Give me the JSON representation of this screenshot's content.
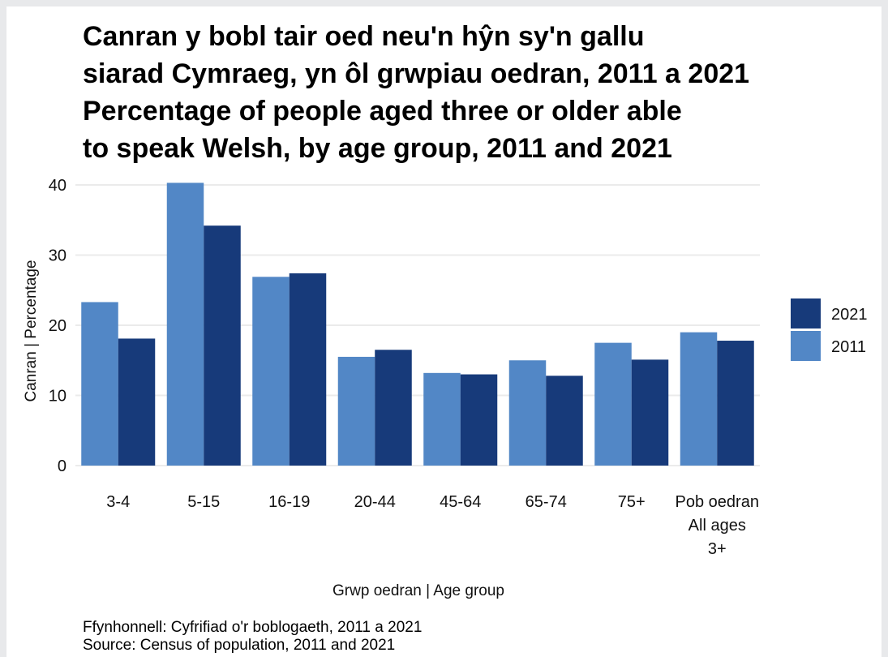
{
  "title": {
    "line1": "Canran y bobl tair oed neu'n hŷn sy'n gallu",
    "line2": "siarad Cymraeg, yn ôl grwpiau oedran, 2011 a 2021",
    "line3": "Percentage of people aged three or older able",
    "line4": "to speak Welsh, by age group, 2011 and 2021"
  },
  "source": {
    "line1": "Ffynhonnell: Cyfrifiad o'r boblogaeth, 2011 a 2021",
    "line2": "Source: Census of population, 2011 and 2021"
  },
  "colors": {
    "series_2021": "#173a7a",
    "series_2011": "#5287c6",
    "gridline": "#ebebeb"
  },
  "chart_data": {
    "type": "bar",
    "title": "Canran y bobl tair oed neu'n hŷn sy'n gallu siarad Cymraeg, yn ôl grwpiau oedran, 2011 a 2021 / Percentage of people aged three or older able to speak Welsh, by age group, 2011 and 2021",
    "xlabel": "Grwp oedran | Age group",
    "ylabel": "Canran | Percentage",
    "ylim": [
      0,
      40
    ],
    "yticks": [
      0,
      10,
      20,
      30,
      40
    ],
    "grid": true,
    "legend_position": "right",
    "categories": [
      [
        "3-4"
      ],
      [
        "5-15"
      ],
      [
        "16-19"
      ],
      [
        "20-44"
      ],
      [
        "45-64"
      ],
      [
        "65-74"
      ],
      [
        "75+"
      ],
      [
        "Pob oedran",
        "All ages",
        "3+"
      ]
    ],
    "series": [
      {
        "name": "2011",
        "values": [
          23.3,
          40.3,
          26.9,
          15.5,
          13.2,
          15.0,
          17.5,
          19.0
        ]
      },
      {
        "name": "2021",
        "values": [
          18.1,
          34.2,
          27.4,
          16.5,
          13.0,
          12.8,
          15.1,
          17.8
        ]
      }
    ],
    "legend_order": [
      "2021",
      "2011"
    ]
  }
}
